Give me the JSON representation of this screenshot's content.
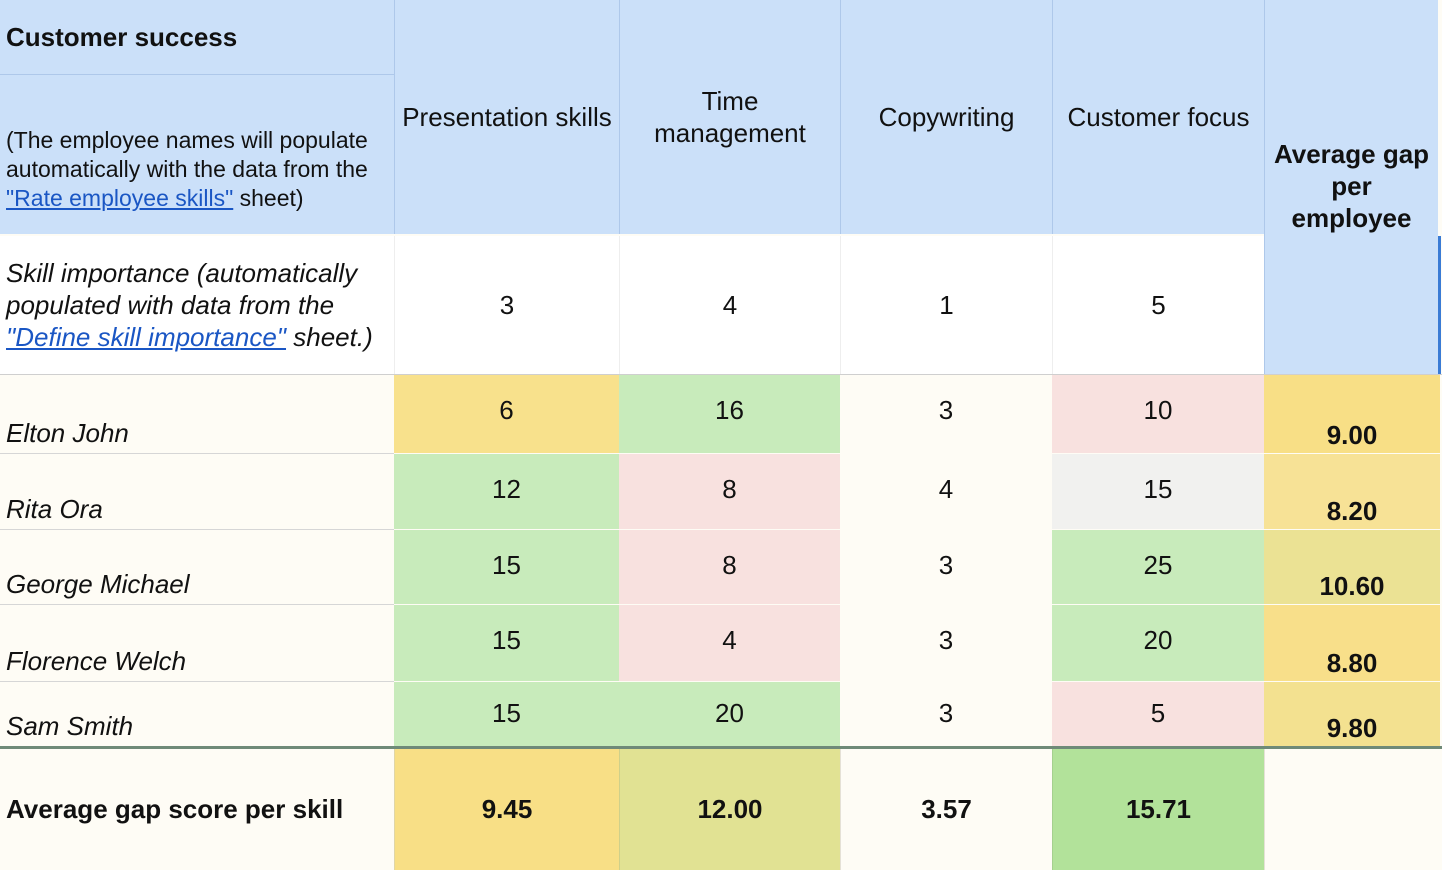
{
  "sheet": {
    "title": "Customer success",
    "note": {
      "before": "(The employee names will populate automatically with the data from the ",
      "link": "\"Rate employee skills\"",
      "after": " sheet)"
    },
    "skills": [
      "Presentation skills",
      "Time management",
      "Copywriting",
      "Customer focus"
    ],
    "avg_header": "Average gap per employee",
    "importance": {
      "label_before": "Skill importance (automatically populated with data from the ",
      "link": "\"Define skill importance\"",
      "label_after": " sheet.)",
      "values": [
        "3",
        "4",
        "1",
        "5"
      ]
    },
    "employees": [
      {
        "name": "Elton John",
        "scores": [
          "6",
          "16",
          "3",
          "10"
        ],
        "avg": "9.00"
      },
      {
        "name": "Rita Ora",
        "scores": [
          "12",
          "8",
          "4",
          "15"
        ],
        "avg": "8.20"
      },
      {
        "name": "George Michael",
        "scores": [
          "15",
          "8",
          "3",
          "25"
        ],
        "avg": "10.60"
      },
      {
        "name": "Florence Welch",
        "scores": [
          "15",
          "4",
          "3",
          "20"
        ],
        "avg": "8.80"
      },
      {
        "name": "Sam Smith",
        "scores": [
          "15",
          "20",
          "3",
          "5"
        ],
        "avg": "9.80"
      }
    ],
    "footer": {
      "label": "Average gap score per skill",
      "values": [
        "9.45",
        "12.00",
        "3.57",
        "15.71"
      ]
    },
    "colors": {
      "header_blue": "#cbe0f9",
      "green": "#c8ebbb",
      "yellow": "#f8e18c",
      "pink": "#f8e1df",
      "light_gray": "#f1f1ef",
      "cream": "#fefcf5",
      "link_blue": "#1a56c4"
    }
  }
}
